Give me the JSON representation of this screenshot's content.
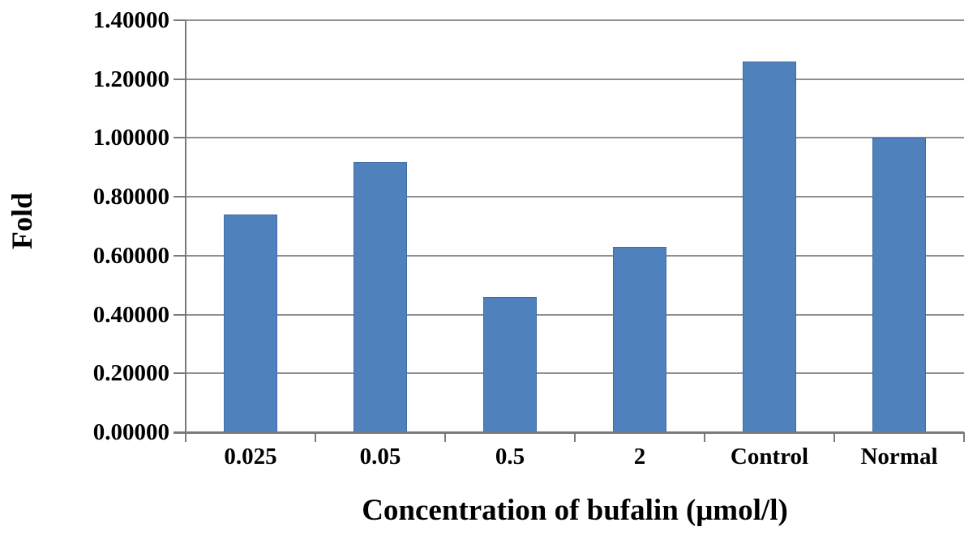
{
  "chart_data": {
    "type": "bar",
    "categories": [
      "0.025",
      "0.05",
      "0.5",
      "2",
      "Control",
      "Normal"
    ],
    "values": [
      0.74,
      0.92,
      0.46,
      0.63,
      1.26,
      1.0
    ],
    "title": "",
    "xlabel": "Concentration of bufalin (μmol/l)",
    "ylabel": "Fold",
    "ylim": [
      0,
      1.4
    ],
    "ytick_step": 0.2,
    "ytick_decimals": 5,
    "grid": true,
    "legend": "none",
    "colors": {
      "bar_fill": "#4f81bd",
      "bar_border": "#3f6ba6",
      "gridline": "#8f8f8f",
      "axis": "#7a7a7a",
      "text": "#000000",
      "background": "#ffffff"
    }
  }
}
